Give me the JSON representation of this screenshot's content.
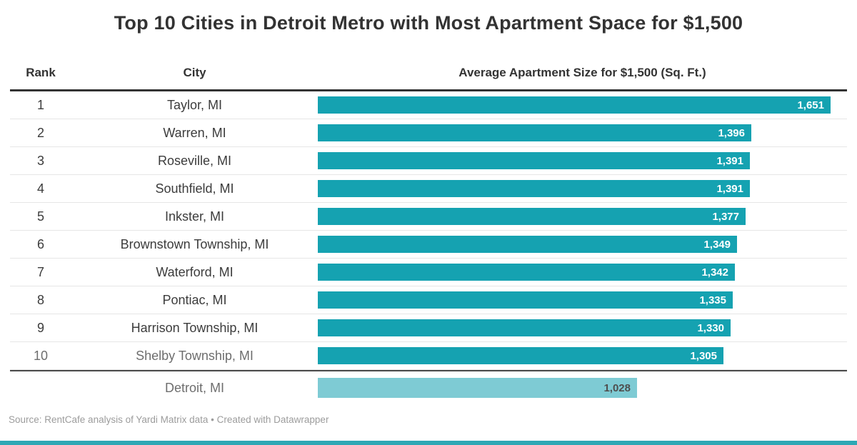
{
  "title": "Top 10 Cities in Detroit Metro with Most Apartment Space for $1,500",
  "columns": {
    "rank": "Rank",
    "city": "City",
    "value": "Average Apartment Size for $1,500 (Sq. Ft.)"
  },
  "rows": [
    {
      "rank": "1",
      "city": "Taylor, MI",
      "value": 1651,
      "label": "1,651",
      "muted": false
    },
    {
      "rank": "2",
      "city": "Warren, MI",
      "value": 1396,
      "label": "1,396",
      "muted": false
    },
    {
      "rank": "3",
      "city": "Roseville, MI",
      "value": 1391,
      "label": "1,391",
      "muted": false
    },
    {
      "rank": "4",
      "city": "Southfield, MI",
      "value": 1391,
      "label": "1,391",
      "muted": false
    },
    {
      "rank": "5",
      "city": "Inkster, MI",
      "value": 1377,
      "label": "1,377",
      "muted": false
    },
    {
      "rank": "6",
      "city": "Brownstown Township, MI",
      "value": 1349,
      "label": "1,349",
      "muted": false
    },
    {
      "rank": "7",
      "city": "Waterford, MI",
      "value": 1342,
      "label": "1,342",
      "muted": false
    },
    {
      "rank": "8",
      "city": "Pontiac, MI",
      "value": 1335,
      "label": "1,335",
      "muted": false
    },
    {
      "rank": "9",
      "city": "Harrison Township, MI",
      "value": 1330,
      "label": "1,330",
      "muted": false
    },
    {
      "rank": "10",
      "city": "Shelby Township, MI",
      "value": 1305,
      "label": "1,305",
      "muted": true
    }
  ],
  "comparison_row": {
    "rank": "",
    "city": "Detroit, MI",
    "value": 1028,
    "label": "1,028",
    "muted": true
  },
  "footer": "Source: RentCafe analysis of Yardi Matrix data • Created with Datawrapper",
  "colors": {
    "bar_teal": "#15A2B1",
    "comparison_teal": "#7ECBD4",
    "title_text": "#333333",
    "row_text": "#3C3C3C",
    "muted_text": "#6E6E6E",
    "bar_value_text": "#FFFFFF",
    "comparison_value_text": "#4E4E4E",
    "row_divider": "#E6E6E6",
    "header_rule": "#333333",
    "comparison_rule": "#4A4A4A",
    "footer_text": "#9C9C9C",
    "bottom_accent": "#2EA8B5"
  },
  "chart_data": {
    "type": "bar",
    "orientation": "horizontal",
    "title": "Top 10 Cities in Detroit Metro with Most Apartment Space for $1,500",
    "value_axis_label": "Average Apartment Size for $1,500 (Sq. Ft.)",
    "categories": [
      "Taylor, MI",
      "Warren, MI",
      "Roseville, MI",
      "Southfield, MI",
      "Inkster, MI",
      "Brownstown Township, MI",
      "Waterford, MI",
      "Pontiac, MI",
      "Harrison Township, MI",
      "Shelby Township, MI",
      "Detroit, MI"
    ],
    "values": [
      1651,
      1396,
      1391,
      1391,
      1377,
      1349,
      1342,
      1335,
      1330,
      1305,
      1028
    ],
    "ranks": [
      1,
      2,
      3,
      4,
      5,
      6,
      7,
      8,
      9,
      10,
      null
    ],
    "data_labels": [
      "1,651",
      "1,396",
      "1,391",
      "1,391",
      "1,377",
      "1,349",
      "1,342",
      "1,335",
      "1,330",
      "1,305",
      "1,028"
    ],
    "xlim": [
      0,
      1651
    ],
    "grid": false,
    "legend": false,
    "highlight": {
      "category": "Detroit, MI",
      "note": "comparison row below top-10, lighter teal, separated by dark rule"
    },
    "source": "Source: RentCafe analysis of Yardi Matrix data • Created with Datawrapper"
  }
}
